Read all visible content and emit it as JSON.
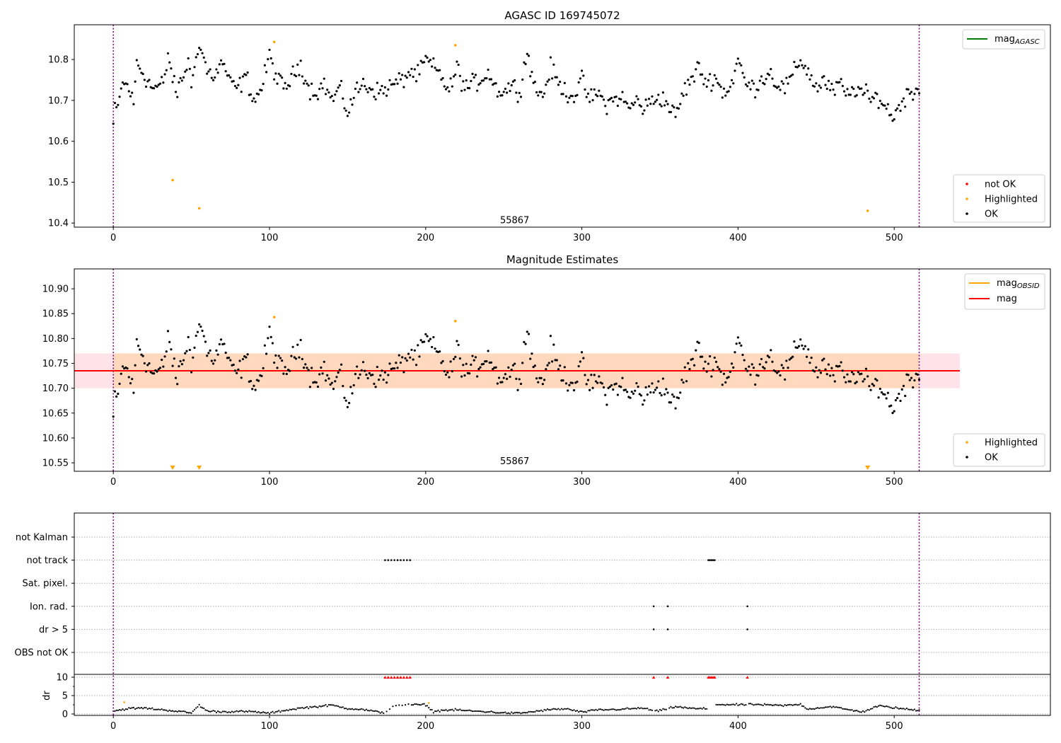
{
  "chart_data": [
    {
      "type": "scatter",
      "title": "AGASC ID 169745072",
      "xlim": [
        -25,
        600
      ],
      "ylim": [
        10.39,
        10.885
      ],
      "xticks": [
        0,
        100,
        200,
        300,
        400,
        500
      ],
      "yticks": [
        10.4,
        10.5,
        10.6,
        10.7,
        10.8
      ],
      "vlines": [
        0,
        516
      ],
      "annotation": {
        "x": 257,
        "y": 10.405,
        "text": "55867"
      },
      "legend_top": {
        "position": "upper right",
        "entries": [
          {
            "label": "mag",
            "subscript": "AGASC",
            "color": "#008000"
          }
        ]
      },
      "legend_bottom": {
        "position": "lower right",
        "entries": [
          {
            "label": "not OK",
            "color": "#ff0000"
          },
          {
            "label": "Highlighted",
            "color": "#ffa500"
          },
          {
            "label": "OK",
            "color": "#000000"
          }
        ]
      },
      "highlighted_points": {
        "x": [
          38,
          55,
          103,
          219,
          483
        ],
        "y": [
          10.505,
          10.436,
          10.843,
          10.835,
          10.43
        ]
      },
      "ok_series_description_points": {
        "x": [
          0,
          1,
          3,
          5,
          8,
          10,
          13,
          15,
          20,
          25,
          30,
          33,
          35,
          40,
          45,
          48,
          50,
          53,
          57,
          60,
          65,
          70,
          75,
          80,
          85,
          90,
          95,
          100,
          105,
          110,
          115,
          120,
          125,
          130,
          135,
          140,
          145,
          150,
          155,
          160,
          165,
          170,
          175,
          180,
          185,
          190,
          195,
          200,
          205,
          210,
          215,
          220,
          225,
          230,
          235,
          240,
          245,
          250,
          255,
          260,
          265,
          270,
          275,
          280,
          285,
          290,
          295,
          300,
          305,
          310,
          315,
          320,
          325,
          330,
          335,
          340,
          345,
          350,
          355,
          360,
          365,
          370,
          375,
          380,
          385,
          390,
          395,
          400,
          405,
          410,
          415,
          420,
          425,
          430,
          435,
          440,
          445,
          450,
          455,
          460,
          465,
          470,
          475,
          480,
          485,
          490,
          495,
          500,
          505,
          510,
          515
        ],
        "y": [
          10.642,
          10.675,
          10.68,
          10.735,
          10.74,
          10.73,
          10.69,
          10.795,
          10.76,
          10.73,
          10.735,
          10.75,
          10.815,
          10.715,
          10.76,
          10.8,
          10.73,
          10.825,
          10.82,
          10.77,
          10.76,
          10.795,
          10.74,
          10.73,
          10.76,
          10.7,
          10.73,
          10.81,
          10.75,
          10.73,
          10.76,
          10.79,
          10.73,
          10.72,
          10.74,
          10.7,
          10.73,
          10.67,
          10.72,
          10.74,
          10.73,
          10.72,
          10.73,
          10.74,
          10.75,
          10.77,
          10.76,
          10.8,
          10.78,
          10.76,
          10.72,
          10.78,
          10.73,
          10.74,
          10.75,
          10.77,
          10.73,
          10.72,
          10.74,
          10.72,
          10.82,
          10.73,
          10.71,
          10.78,
          10.74,
          10.72,
          10.71,
          10.75,
          10.7,
          10.72,
          10.69,
          10.7,
          10.71,
          10.68,
          10.7,
          10.68,
          10.7,
          10.71,
          10.69,
          10.66,
          10.72,
          10.75,
          10.78,
          10.74,
          10.76,
          10.72,
          10.73,
          10.8,
          10.74,
          10.73,
          10.75,
          10.77,
          10.74,
          10.73,
          10.76,
          10.8,
          10.77,
          10.73,
          10.75,
          10.72,
          10.74,
          10.71,
          10.73,
          10.72,
          10.7,
          10.71,
          10.68,
          10.66,
          10.7,
          10.72,
          10.73
        ]
      }
    },
    {
      "type": "scatter",
      "title": "Magnitude Estimates",
      "xlim": [
        -25,
        600
      ],
      "ylim": [
        10.533,
        10.94
      ],
      "xticks": [
        0,
        100,
        200,
        300,
        400,
        500
      ],
      "yticks": [
        10.55,
        10.6,
        10.65,
        10.7,
        10.75,
        10.8,
        10.85,
        10.9
      ],
      "vlines": [
        0,
        516
      ],
      "hline": {
        "y": 10.735,
        "color": "#ff0000",
        "label": "mag"
      },
      "band": {
        "y0": 10.7,
        "y1": 10.77,
        "x_end": 542
      },
      "annotation": {
        "x": 257,
        "y": 10.545,
        "text": "55867"
      },
      "legend_top": {
        "position": "upper right",
        "entries": [
          {
            "label": "mag",
            "subscript": "OBSID",
            "color": "#ffa500"
          },
          {
            "label": "mag",
            "subscript": "",
            "color": "#ff0000"
          }
        ]
      },
      "legend_bottom": {
        "position": "lower right",
        "entries": [
          {
            "label": "Highlighted",
            "color": "#ffa500"
          },
          {
            "label": "OK",
            "color": "#000000"
          }
        ]
      },
      "highlighted_points": {
        "x": [
          103,
          219
        ],
        "y": [
          10.843,
          10.835
        ]
      },
      "highlighted_down_markers": {
        "x": [
          38,
          55,
          483
        ],
        "y": [
          10.537,
          10.537,
          10.537
        ]
      }
    },
    {
      "type": "scatter",
      "title": "",
      "xlim": [
        -25,
        600
      ],
      "xticks": [
        0,
        100,
        200,
        300,
        400,
        500
      ],
      "vlines": [
        0,
        516
      ],
      "flag_categories": [
        "not Kalman",
        "not track",
        "Sat. pixel.",
        "Ion. rad.",
        "dr > 5",
        "OBS not OK"
      ],
      "flags": {
        "not track": [
          174,
          176,
          178,
          180,
          182,
          184,
          186,
          188,
          190,
          381,
          382,
          383,
          384,
          385
        ],
        "Ion. rad.": [
          346,
          355,
          406
        ],
        "dr > 5": [
          346,
          355,
          406
        ]
      },
      "dr_panel": {
        "ylabel": "dr",
        "yticks": [
          0,
          5,
          10
        ],
        "ylim": [
          -0.5,
          10.5
        ],
        "red_triangles_at_10": [
          174,
          176,
          178,
          180,
          182,
          184,
          186,
          188,
          190,
          346,
          355,
          381,
          382,
          383,
          384,
          385,
          406
        ],
        "orange_points": {
          "x": [
            7,
            202
          ],
          "y": [
            3.2,
            3.0
          ]
        },
        "profile_x": [
          0,
          10,
          20,
          30,
          40,
          50,
          55,
          60,
          70,
          80,
          90,
          100,
          110,
          120,
          130,
          140,
          150,
          160,
          170,
          174,
          180,
          190,
          200,
          205,
          210,
          220,
          230,
          240,
          250,
          260,
          270,
          280,
          290,
          300,
          310,
          320,
          330,
          340,
          346,
          350,
          360,
          370,
          380,
          385,
          400,
          410,
          420,
          430,
          440,
          445,
          450,
          460,
          470,
          480,
          490,
          500,
          510,
          516
        ],
        "profile_y": [
          0.8,
          1.5,
          1.6,
          1.2,
          0.8,
          0.3,
          2.4,
          0.8,
          0.6,
          0.7,
          0.6,
          0.2,
          1.0,
          1.6,
          2.0,
          2.4,
          1.5,
          1.2,
          0.5,
          0.4,
          2.4,
          2.5,
          2.5,
          0.6,
          1.0,
          1.1,
          0.8,
          0.6,
          0.3,
          0.2,
          0.7,
          1.2,
          1.4,
          0.5,
          1.1,
          1.2,
          1.4,
          1.6,
          0.8,
          0.9,
          2.0,
          1.5,
          1.4,
          2.6,
          2.5,
          2.6,
          2.4,
          2.3,
          2.6,
          1.3,
          1.6,
          2.0,
          1.2,
          0.6,
          2.2,
          1.7,
          1.2,
          1.0
        ]
      }
    }
  ]
}
